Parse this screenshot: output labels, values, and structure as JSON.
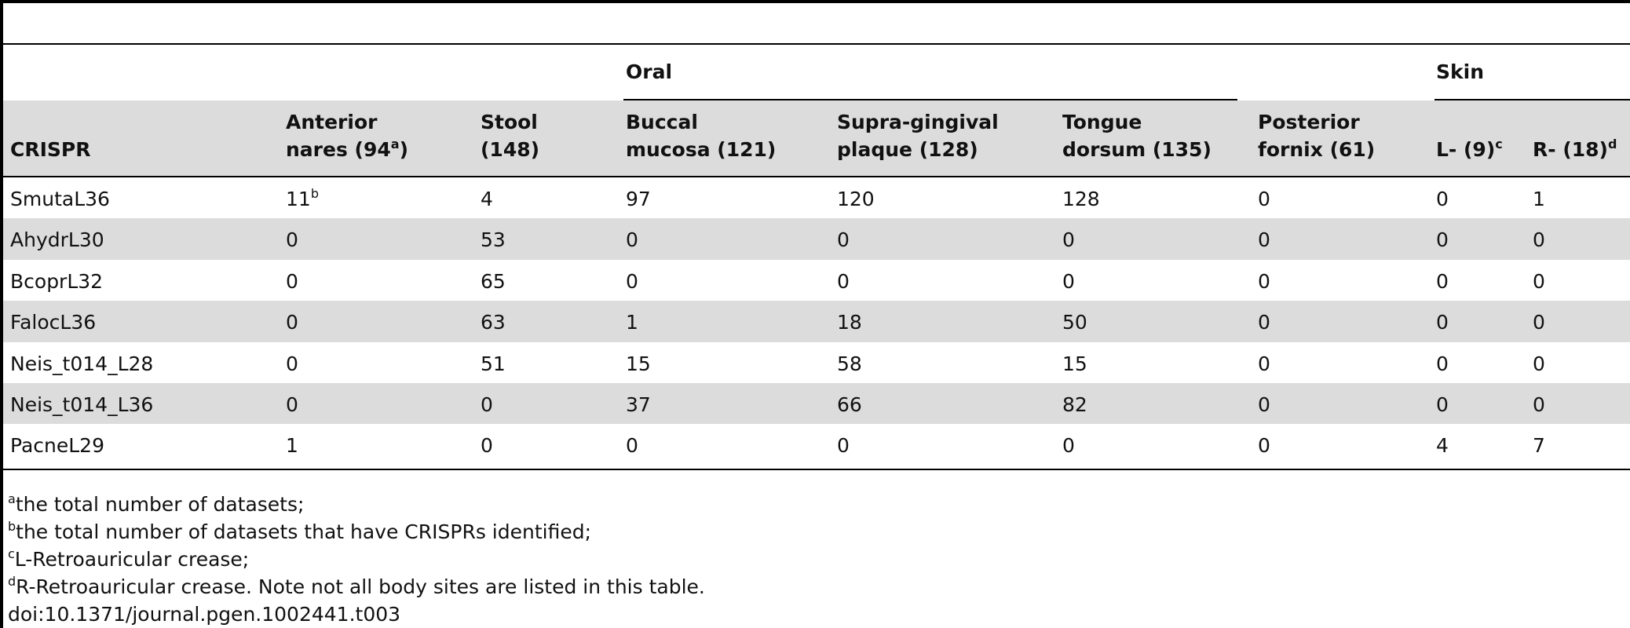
{
  "table": {
    "groups": [
      {
        "text": "Oral"
      },
      {
        "text": "Skin"
      }
    ],
    "columns": [
      {
        "lines": [
          "CRISPR"
        ]
      },
      {
        "lines": [
          "Anterior",
          "nares (94"
        ],
        "sup": "a",
        "tail": ")"
      },
      {
        "lines": [
          "Stool",
          "(148)"
        ]
      },
      {
        "lines": [
          "Buccal",
          "mucosa (121)"
        ]
      },
      {
        "lines": [
          "Supra-gingival",
          "plaque (128)"
        ]
      },
      {
        "lines": [
          "Tongue",
          "dorsum (135)"
        ]
      },
      {
        "lines": [
          "Posterior",
          "fornix (61)"
        ]
      },
      {
        "lines": [
          "L- (9)"
        ],
        "sup": "c"
      },
      {
        "lines": [
          "R- (18)"
        ],
        "sup": "d"
      }
    ],
    "rows": [
      [
        "SmutaL36",
        {
          "value": 11,
          "sup": "b"
        },
        4,
        97,
        120,
        128,
        0,
        0,
        1
      ],
      [
        "AhydrL30",
        0,
        53,
        0,
        0,
        0,
        0,
        0,
        0
      ],
      [
        "BcoprL32",
        0,
        65,
        0,
        0,
        0,
        0,
        0,
        0
      ],
      [
        "FalocL36",
        0,
        63,
        1,
        18,
        50,
        0,
        0,
        0
      ],
      [
        "Neis_t014_L28",
        0,
        51,
        15,
        58,
        15,
        0,
        0,
        0
      ],
      [
        "Neis_t014_L36",
        0,
        0,
        37,
        66,
        82,
        0,
        0,
        0
      ],
      [
        "PacneL29",
        1,
        0,
        0,
        0,
        0,
        0,
        4,
        7
      ]
    ]
  },
  "footnotes": [
    {
      "sup": "a",
      "text": "the total number of datasets;"
    },
    {
      "sup": "b",
      "text": "the total number of datasets that have CRISPRs identified;"
    },
    {
      "sup": "c",
      "text": "L-Retroauricular crease;"
    },
    {
      "sup": "d",
      "text": "R-Retroauricular crease. Note not all body sites are listed in this table."
    }
  ],
  "doi": "doi:10.1371/journal.pgen.1002441.t003"
}
